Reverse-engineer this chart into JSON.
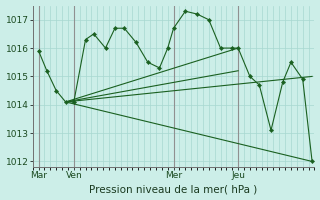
{
  "background_color": "#cceee8",
  "grid_color": "#a8d8d0",
  "line_color": "#1a6020",
  "title": "Pression niveau de la mer( hPa )",
  "ylim": [
    1011.8,
    1017.5
  ],
  "yticks": [
    1012,
    1013,
    1014,
    1015,
    1016,
    1017
  ],
  "xlim": [
    0,
    24
  ],
  "day_labels": [
    "Mar",
    "Ven",
    "Mer",
    "Jeu"
  ],
  "day_positions": [
    0.5,
    3.5,
    12.0,
    17.5
  ],
  "vline_positions": [
    0.5,
    3.5,
    12.0,
    17.5
  ],
  "series1_x": [
    0.5,
    1.2,
    2.0,
    2.8,
    3.5,
    4.5,
    5.2,
    6.2,
    7.0,
    7.8,
    8.8,
    9.8,
    10.8,
    11.5,
    12.0,
    13.0,
    14.0,
    15.0,
    16.0,
    17.0,
    17.5,
    18.5,
    19.3,
    20.3,
    21.3,
    22.0,
    23.0,
    23.8
  ],
  "series1_y": [
    1015.9,
    1015.2,
    1014.5,
    1014.1,
    1014.1,
    1016.3,
    1016.5,
    1016.0,
    1016.7,
    1016.7,
    1016.2,
    1015.5,
    1015.3,
    1016.0,
    1016.7,
    1017.3,
    1017.2,
    1017.0,
    1016.0,
    1016.0,
    1016.0,
    1015.0,
    1014.7,
    1013.1,
    1014.8,
    1015.5,
    1014.9,
    1012.0
  ],
  "fan_origin_x": 2.8,
  "fan_origin_y": 1014.1,
  "fan_lines": [
    {
      "x2": 23.8,
      "y2": 1012.0
    },
    {
      "x2": 17.5,
      "y2": 1016.0
    },
    {
      "x2": 17.5,
      "y2": 1015.2
    },
    {
      "x2": 23.8,
      "y2": 1015.0
    }
  ]
}
